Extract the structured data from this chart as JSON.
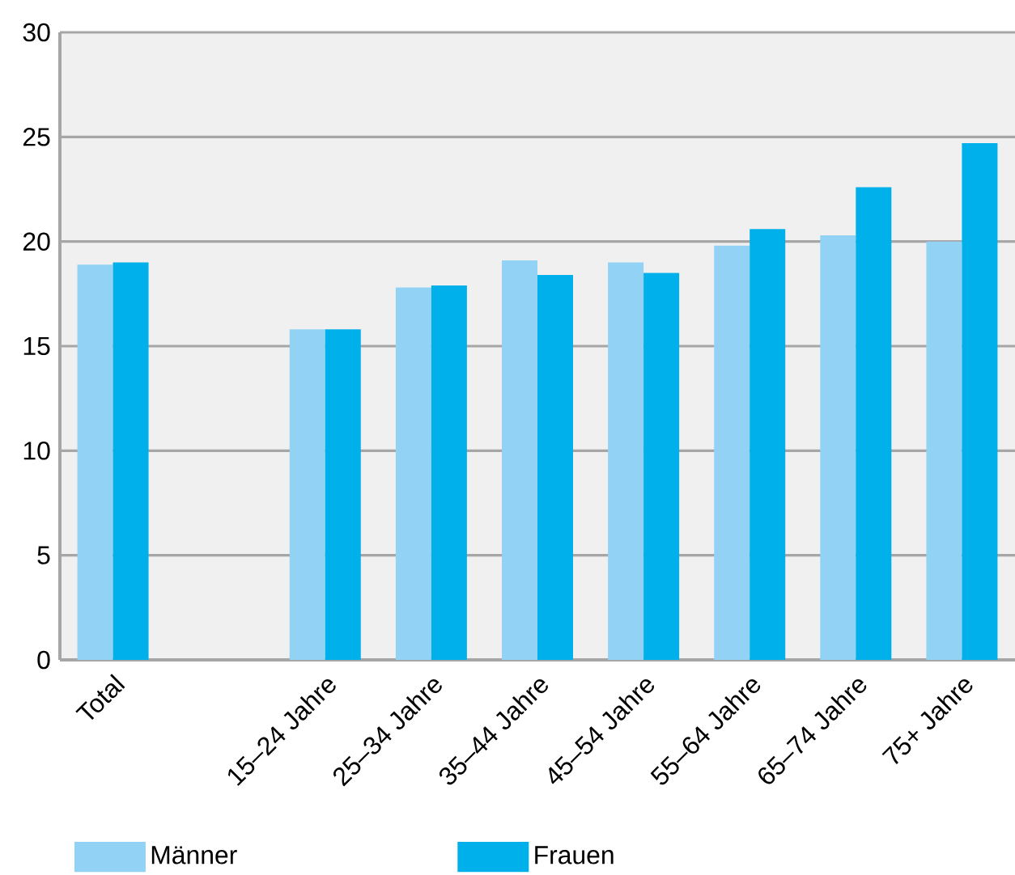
{
  "chart_data": {
    "type": "bar",
    "categories": [
      "Total",
      null,
      "15–24 Jahre",
      "25–34 Jahre",
      "35–44 Jahre",
      "45–54 Jahre",
      "55–64 Jahre",
      "65–74 Jahre",
      "75+ Jahre"
    ],
    "series": [
      {
        "name": "Männer",
        "color": "#92d3f5",
        "values": [
          18.9,
          null,
          15.8,
          17.8,
          19.1,
          19.0,
          19.8,
          20.3,
          20.0
        ]
      },
      {
        "name": "Frauen",
        "color": "#00b0ea",
        "values": [
          19.0,
          null,
          15.8,
          17.9,
          18.4,
          18.5,
          20.6,
          22.6,
          24.7
        ]
      }
    ],
    "ylim": [
      0,
      30
    ],
    "yticks": [
      0,
      5,
      10,
      15,
      20,
      25,
      30
    ],
    "grid": "y",
    "legend": "bottom"
  }
}
